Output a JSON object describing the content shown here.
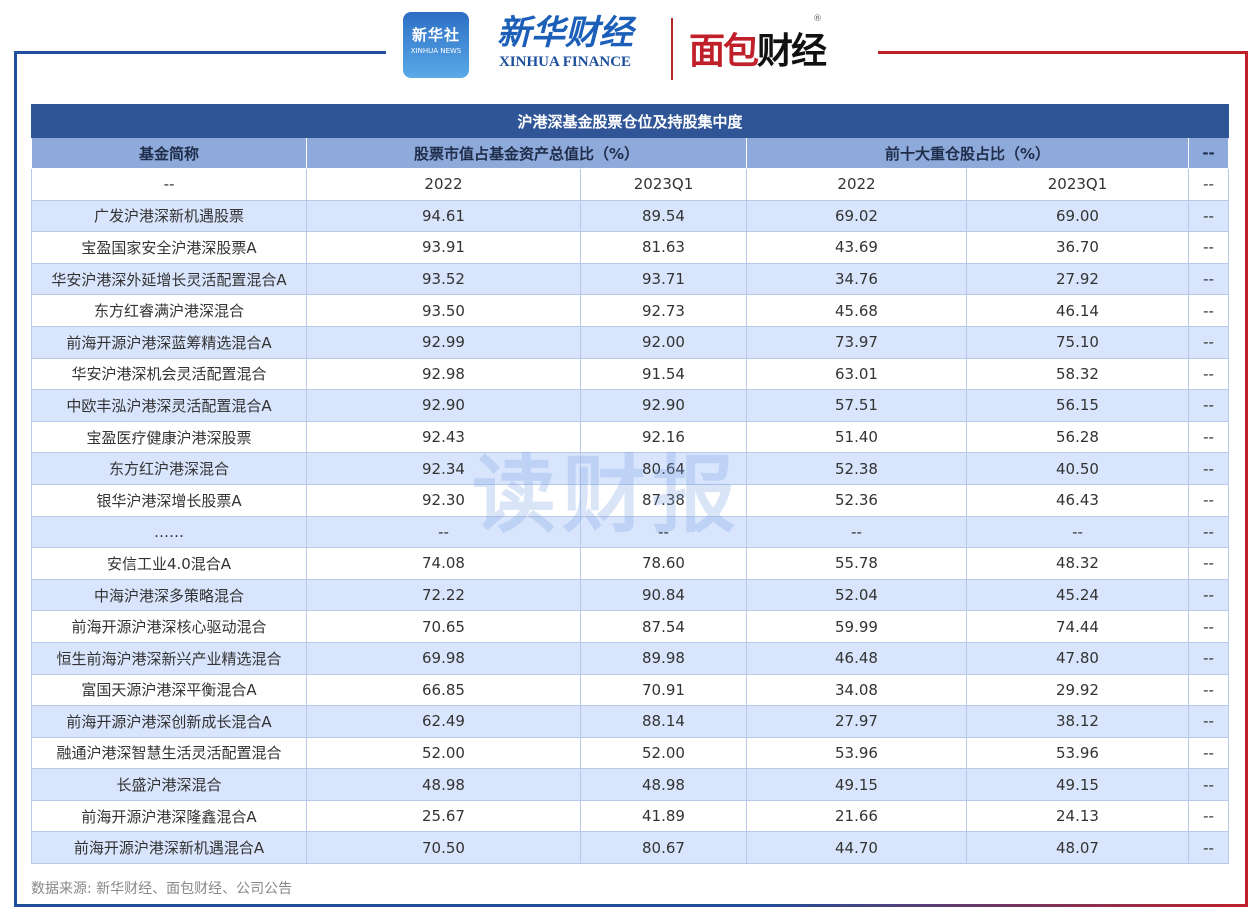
{
  "header": {
    "xinhua_badge_cn": "新华社",
    "xinhua_badge_en": "XINHUA NEWS",
    "xinhua_finance_cn": "新华财经",
    "xinhua_finance_en": "XINHUA FINANCE",
    "mianbao_logo_red": "面包",
    "mianbao_logo_black": "财经",
    "registered_mark": "®"
  },
  "colors": {
    "title_bg": "#2f5597",
    "header_bg": "#8eaadb",
    "row_alt_bg": "#d9e5fc",
    "frame_left": "#1f4e9c",
    "frame_right": "#c0202a"
  },
  "watermark": "读财报",
  "source": "数据来源: 新华财经、面包财经、公司公告",
  "chart_data": {
    "type": "table",
    "title": "沪港深基金股票仓位及持股集中度",
    "group_headers": [
      "基金简称",
      "股票市值占基金资产总值比（%）",
      "前十大重仓股占比（%）",
      "--"
    ],
    "sub_headers": [
      "--",
      "2022",
      "2023Q1",
      "2022",
      "2023Q1",
      "--"
    ],
    "rows": [
      [
        "广发沪港深新机遇股票",
        "94.61",
        "89.54",
        "69.02",
        "69.00",
        "--"
      ],
      [
        "宝盈国家安全沪港深股票A",
        "93.91",
        "81.63",
        "43.69",
        "36.70",
        "--"
      ],
      [
        "华安沪港深外延增长灵活配置混合A",
        "93.52",
        "93.71",
        "34.76",
        "27.92",
        "--"
      ],
      [
        "东方红睿满沪港深混合",
        "93.50",
        "92.73",
        "45.68",
        "46.14",
        "--"
      ],
      [
        "前海开源沪港深蓝筹精选混合A",
        "92.99",
        "92.00",
        "73.97",
        "75.10",
        "--"
      ],
      [
        "华安沪港深机会灵活配置混合",
        "92.98",
        "91.54",
        "63.01",
        "58.32",
        "--"
      ],
      [
        "中欧丰泓沪港深灵活配置混合A",
        "92.90",
        "92.90",
        "57.51",
        "56.15",
        "--"
      ],
      [
        "宝盈医疗健康沪港深股票",
        "92.43",
        "92.16",
        "51.40",
        "56.28",
        "--"
      ],
      [
        "东方红沪港深混合",
        "92.34",
        "80.64",
        "52.38",
        "40.50",
        "--"
      ],
      [
        "银华沪港深增长股票A",
        "92.30",
        "87.38",
        "52.36",
        "46.43",
        "--"
      ],
      [
        "……",
        "--",
        "--",
        "--",
        "--",
        "--"
      ],
      [
        "安信工业4.0混合A",
        "74.08",
        "78.60",
        "55.78",
        "48.32",
        "--"
      ],
      [
        "中海沪港深多策略混合",
        "72.22",
        "90.84",
        "52.04",
        "45.24",
        "--"
      ],
      [
        "前海开源沪港深核心驱动混合",
        "70.65",
        "87.54",
        "59.99",
        "74.44",
        "--"
      ],
      [
        "恒生前海沪港深新兴产业精选混合",
        "69.98",
        "89.98",
        "46.48",
        "47.80",
        "--"
      ],
      [
        "富国天源沪港深平衡混合A",
        "66.85",
        "70.91",
        "34.08",
        "29.92",
        "--"
      ],
      [
        "前海开源沪港深创新成长混合A",
        "62.49",
        "88.14",
        "27.97",
        "38.12",
        "--"
      ],
      [
        "融通沪港深智慧生活灵活配置混合",
        "52.00",
        "52.00",
        "53.96",
        "53.96",
        "--"
      ],
      [
        "长盛沪港深混合",
        "48.98",
        "48.98",
        "49.15",
        "49.15",
        "--"
      ],
      [
        "前海开源沪港深隆鑫混合A",
        "25.67",
        "41.89",
        "21.66",
        "24.13",
        "--"
      ],
      [
        "前海开源沪港深新机遇混合A",
        "70.50",
        "80.67",
        "44.70",
        "48.07",
        "--"
      ]
    ]
  }
}
